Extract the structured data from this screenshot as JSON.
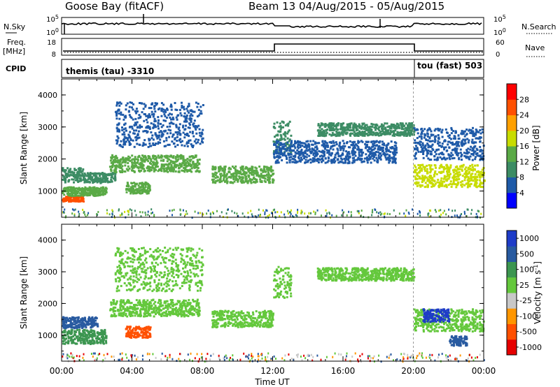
{
  "header": {
    "station": "Goose Bay (fitACF)",
    "beam_date": "Beam 13 04/Aug/2015 - 05/Aug/2015"
  },
  "top_panels": {
    "nsky_label": "N.Sky",
    "nsky_ticks": [
      "10^5",
      "10^0"
    ],
    "nsearch_label": "N.Search",
    "nsearch_ticks": [
      "10^5",
      "10^0"
    ],
    "freq_label": "Freq.",
    "freq_unit": "[MHz]",
    "freq_ticks": [
      "18",
      "8"
    ],
    "nave_label": "Nave",
    "nave_ticks": [
      "60",
      "0"
    ],
    "cpid_label": "CPID",
    "cpid_left": "themis (tau) -3310",
    "cpid_right": "tou (fast) 503"
  },
  "colors": {
    "power": [
      "#0000ff",
      "#1e5aa8",
      "#3c8c64",
      "#5aaa46",
      "#c8dc00",
      "#ffa000",
      "#ff5000",
      "#ff0000"
    ],
    "velocity": [
      "#e60000",
      "#ff5000",
      "#ff9600",
      "#c8c8c8",
      "#64c83c",
      "#3c9650",
      "#285aa0",
      "#1e3cc8"
    ]
  },
  "chart_data": [
    {
      "type": "heatmap",
      "title": "",
      "ylabel": "Slant Range [km]",
      "xlabel": "",
      "xlim": [
        "00:00",
        "00:00"
      ],
      "ylim": [
        180,
        4500
      ],
      "yticks": [
        "1000",
        "2000",
        "3000",
        "4000"
      ],
      "colorbar": {
        "label": "Power [dB]",
        "ticks": [
          "4",
          "8",
          "12",
          "16",
          "20",
          "24",
          "28"
        ],
        "range": [
          0,
          32
        ]
      },
      "regions": [
        {
          "t": [
            0.0,
            1.2
          ],
          "r": [
            700,
            860
          ],
          "v": 27
        },
        {
          "t": [
            0.0,
            2.5
          ],
          "r": [
            880,
            1150
          ],
          "v": 14
        },
        {
          "t": [
            0.0,
            1.2
          ],
          "r": [
            1300,
            1750
          ],
          "v": 10
        },
        {
          "t": [
            1.2,
            3.0
          ],
          "r": [
            1280,
            1600
          ],
          "v": 9
        },
        {
          "t": [
            3.6,
            5.0
          ],
          "r": [
            950,
            1300
          ],
          "v": 12
        },
        {
          "t": [
            2.7,
            7.8
          ],
          "r": [
            1620,
            2150
          ],
          "v": 13
        },
        {
          "t": [
            8.5,
            12.0
          ],
          "r": [
            1280,
            1800
          ],
          "v": 15
        },
        {
          "t": [
            3.0,
            8.0
          ],
          "r": [
            2400,
            3800
          ],
          "v": 5
        },
        {
          "t": [
            12.0,
            13.0
          ],
          "r": [
            2200,
            3200
          ],
          "v": 8
        },
        {
          "t": [
            14.5,
            20.0
          ],
          "r": [
            2750,
            3150
          ],
          "v": 9
        },
        {
          "t": [
            12.0,
            19.0
          ],
          "r": [
            1900,
            2600
          ],
          "v": 4
        },
        {
          "t": [
            20.0,
            24.0
          ],
          "r": [
            1150,
            1850
          ],
          "v": 17
        },
        {
          "t": [
            20.0,
            24.0
          ],
          "r": [
            2000,
            3000
          ],
          "v": 6
        }
      ]
    },
    {
      "type": "heatmap",
      "title": "",
      "ylabel": "Slant Range [km]",
      "xlabel": "Time UT",
      "xlim": [
        "00:00",
        "00:00"
      ],
      "xticks": [
        "00:00",
        "04:00",
        "08:00",
        "12:00",
        "16:00",
        "20:00",
        "00:00"
      ],
      "ylim": [
        180,
        4500
      ],
      "yticks": [
        "1000",
        "2000",
        "3000",
        "4000"
      ],
      "colorbar": {
        "label": "Velocity [m s^-1]",
        "ticks": [
          "1000",
          "500",
          "100",
          "25",
          "-25",
          "-100",
          "-500",
          "-1000"
        ]
      },
      "regions": [
        {
          "t": [
            0.0,
            2.5
          ],
          "r": [
            750,
            1200
          ],
          "v": "100"
        },
        {
          "t": [
            0.0,
            2.0
          ],
          "r": [
            1250,
            1600
          ],
          "v": "500"
        },
        {
          "t": [
            3.6,
            5.0
          ],
          "r": [
            950,
            1300
          ],
          "v": "-500"
        },
        {
          "t": [
            2.7,
            7.8
          ],
          "r": [
            1620,
            2150
          ],
          "v": "25"
        },
        {
          "t": [
            8.5,
            12.0
          ],
          "r": [
            1280,
            1800
          ],
          "v": "25"
        },
        {
          "t": [
            3.0,
            8.0
          ],
          "r": [
            2400,
            3800
          ],
          "v": "25"
        },
        {
          "t": [
            12.0,
            13.0
          ],
          "r": [
            2200,
            3200
          ],
          "v": "25"
        },
        {
          "t": [
            14.5,
            20.0
          ],
          "r": [
            2750,
            3150
          ],
          "v": "25"
        },
        {
          "t": [
            20.0,
            24.0
          ],
          "r": [
            1150,
            1850
          ],
          "v": "25"
        },
        {
          "t": [
            20.5,
            22.0
          ],
          "r": [
            1450,
            1850
          ],
          "v": "1000"
        },
        {
          "t": [
            22.0,
            23.0
          ],
          "r": [
            700,
            1000
          ],
          "v": "500"
        }
      ]
    }
  ]
}
